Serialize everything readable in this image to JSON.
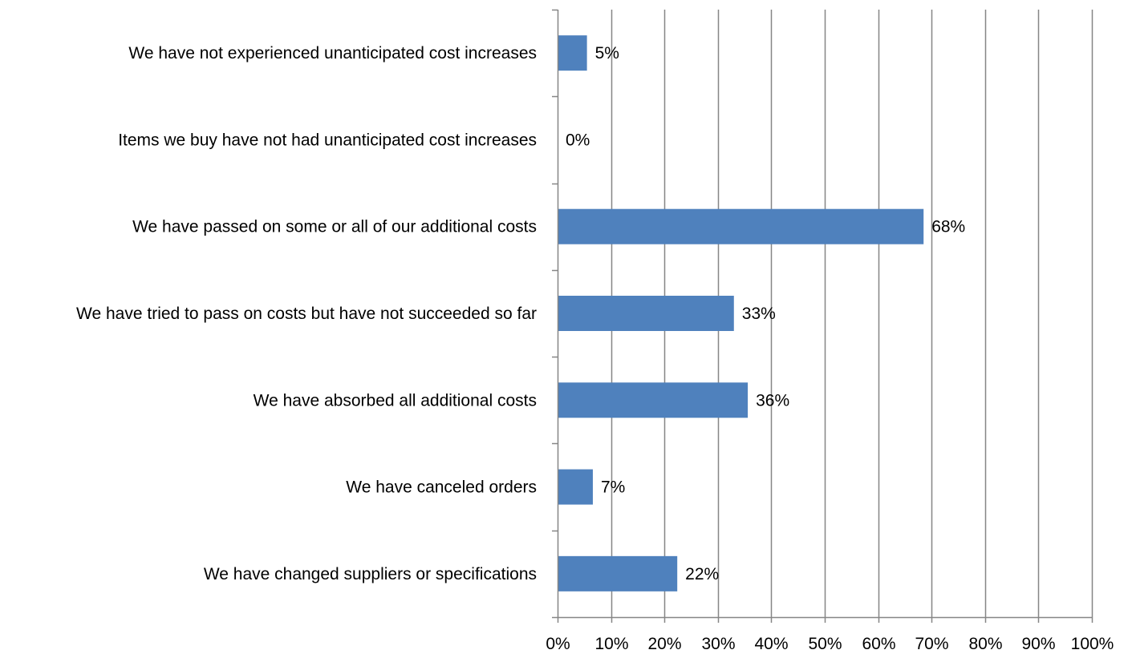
{
  "chart_data": {
    "type": "bar",
    "orientation": "horizontal",
    "title": "",
    "xlabel": "",
    "ylabel": "",
    "categories": [
      "We have not experienced unanticipated cost increases",
      "Items we buy have not had unanticipated cost increases",
      "We have passed on some or all of our additional costs",
      "We have tried to pass on costs but have not succeeded so far",
      "We have absorbed all additional costs",
      "We have canceled orders",
      "We have changed suppliers or specifications"
    ],
    "values": [
      5.5,
      0,
      68.5,
      33,
      35.6,
      6.6,
      22.4
    ],
    "data_labels": [
      "5%",
      "0%",
      "68%",
      "33%",
      "36%",
      "7%",
      "22%"
    ],
    "xlim": [
      0,
      100
    ],
    "x_ticks": [
      0,
      10,
      20,
      30,
      40,
      50,
      60,
      70,
      80,
      90,
      100
    ],
    "x_tick_labels": [
      "0%",
      "10%",
      "20%",
      "30%",
      "40%",
      "50%",
      "60%",
      "70%",
      "80%",
      "90%",
      "100%"
    ],
    "grid": "vertical",
    "legend": "none",
    "colors": {
      "bar": "#4F81BD",
      "grid": "#868686",
      "axis": "#868686",
      "text": "#000000"
    }
  }
}
